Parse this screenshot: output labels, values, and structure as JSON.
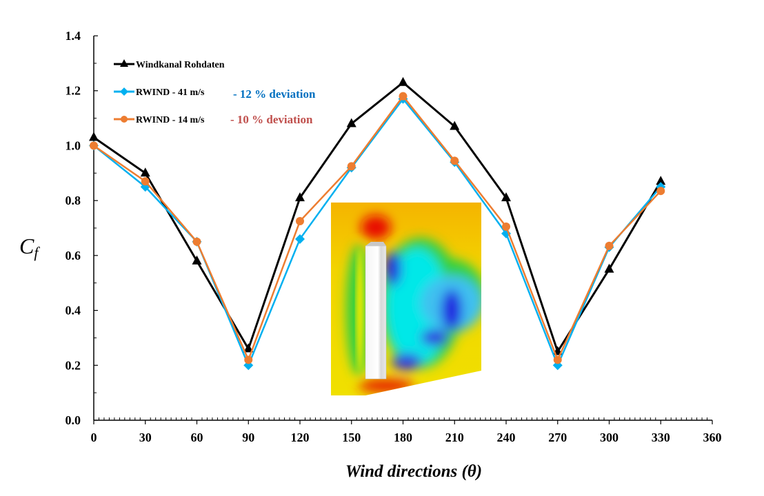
{
  "chart_data": {
    "type": "line",
    "title": "",
    "xlabel": "Wind directions (θ)",
    "ylabel": "C_f",
    "ylabel_main": "C",
    "ylabel_sub": "f",
    "xlim": [
      0,
      360
    ],
    "ylim": [
      0,
      1.4
    ],
    "xticks": [
      0,
      30,
      60,
      90,
      120,
      150,
      180,
      210,
      240,
      270,
      300,
      330,
      360
    ],
    "yticks": [
      "0.0",
      "0.2",
      "0.4",
      "0.6",
      "0.8",
      "1.0",
      "1.2",
      "1.4"
    ],
    "grid": false,
    "legend_placement": "top-left",
    "x": [
      0,
      30,
      60,
      90,
      120,
      150,
      180,
      210,
      240,
      270,
      300,
      330
    ],
    "series": [
      {
        "name": "Windkanal Rohdaten",
        "color": "#000000",
        "marker": "triangle",
        "values": [
          1.03,
          0.9,
          0.58,
          0.26,
          0.81,
          1.08,
          1.23,
          1.07,
          0.81,
          0.25,
          0.55,
          0.87
        ]
      },
      {
        "name": "RWIND - 41 m/s",
        "color": "#00B0F0",
        "marker": "diamond",
        "annotation": "- 12 % deviation",
        "annotation_color": "#0070C0",
        "values": [
          1.0,
          0.85,
          0.65,
          0.2,
          0.66,
          0.92,
          1.17,
          0.94,
          0.68,
          0.2,
          0.63,
          0.85
        ]
      },
      {
        "name": "RWIND - 14 m/s",
        "color": "#ED7D31",
        "marker": "circle",
        "annotation": "- 10 % deviation",
        "annotation_color": "#C0504D",
        "values": [
          1.0,
          0.87,
          0.65,
          0.22,
          0.725,
          0.925,
          1.18,
          0.945,
          0.705,
          0.22,
          0.635,
          0.835
        ]
      }
    ],
    "inset": "CFD wind flow contour image around a vertical column"
  }
}
